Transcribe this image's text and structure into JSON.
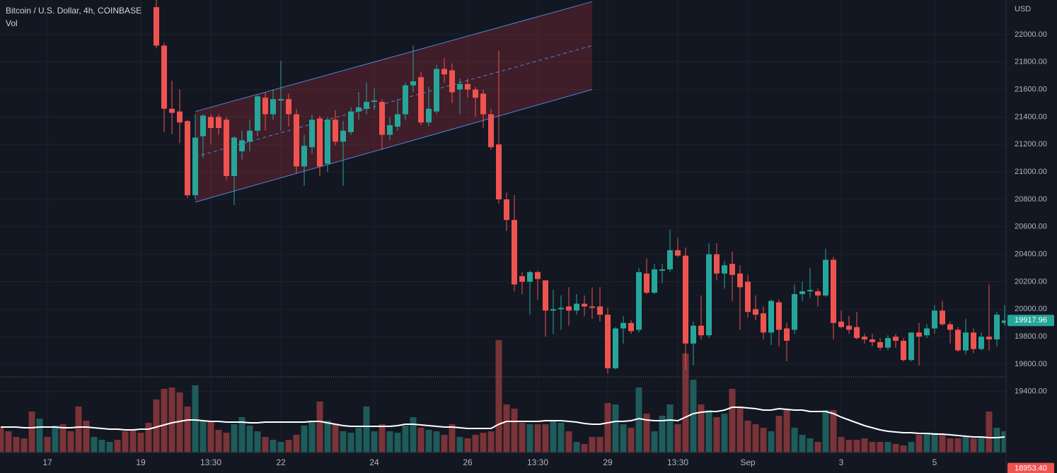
{
  "chart_data": {
    "type": "candlestick",
    "title": "Bitcoin / U.S. Dollar, 4h, COINBASE",
    "indicator": "Vol",
    "currency": "USD",
    "categories": [
      null,
      null,
      null,
      null,
      null,
      null,
      "17",
      null,
      null,
      null,
      null,
      null,
      null,
      null,
      null,
      null,
      null,
      null,
      "19",
      null,
      null,
      null,
      null,
      null,
      null,
      null,
      null,
      "13:30",
      null,
      null,
      null,
      null,
      null,
      null,
      null,
      null,
      "22",
      null,
      null,
      null,
      null,
      null,
      null,
      null,
      null,
      null,
      null,
      null,
      "24",
      null,
      null,
      null,
      null,
      null,
      null,
      null,
      null,
      null,
      null,
      null,
      "26",
      null,
      null,
      null,
      null,
      null,
      null,
      null,
      null,
      "13:30",
      null,
      null,
      null,
      null,
      null,
      null,
      null,
      null,
      "29",
      null,
      null,
      null,
      null,
      null,
      null,
      null,
      null,
      "13:30",
      null,
      null,
      null,
      null,
      null,
      null,
      null,
      null,
      "Sep",
      null,
      null,
      null,
      null,
      null,
      null,
      null,
      null,
      null,
      null,
      null,
      "3",
      null,
      null,
      null,
      null,
      null,
      null,
      null,
      null,
      null,
      null,
      null,
      "5",
      null,
      null,
      null,
      null,
      null,
      null,
      null,
      null,
      null
    ],
    "open": [
      null,
      null,
      null,
      null,
      null,
      null,
      null,
      null,
      null,
      null,
      null,
      null,
      null,
      null,
      null,
      null,
      null,
      null,
      null,
      null,
      22200,
      21920,
      21460,
      21440,
      21370,
      20830,
      21260,
      21400,
      21400,
      21380,
      20970,
      21150,
      21220,
      21300,
      21540,
      21420,
      21520,
      21530,
      21420,
      21040,
      21180,
      21390,
      21060,
      21380,
      21220,
      21290,
      21440,
      21460,
      21510,
      21510,
      21270,
      21330,
      21420,
      21630,
      21690,
      21360,
      21440,
      21750,
      21740,
      21600,
      21640,
      21600,
      21570,
      21420,
      21200,
      20800,
      20650,
      20240,
      20200,
      20270,
      20210,
      19990,
      20000,
      20020,
      19990,
      20040,
      20020,
      20020,
      19960,
      19570,
      19860,
      19900,
      19850,
      20260,
      20120,
      20280,
      20290,
      20430,
      20390,
      19750,
      19880,
      19810,
      20400,
      20260,
      20330,
      20260,
      20200,
      20000,
      19970,
      19830,
      20050,
      19860,
      19850,
      20110,
      20130,
      20130,
      20100,
      20360,
      19910,
      19880,
      19870,
      19800,
      19780,
      19760,
      19720,
      19800,
      19770,
      19630,
      19830,
      19810,
      19860,
      19990,
      19890,
      19850,
      19700,
      19830,
      19710,
      19800,
      19780,
      19900
    ],
    "high": [
      null,
      null,
      null,
      null,
      null,
      null,
      null,
      null,
      null,
      null,
      null,
      null,
      null,
      null,
      null,
      null,
      null,
      null,
      null,
      null,
      22300,
      21940,
      21665,
      21600,
      21380,
      21420,
      21420,
      21420,
      21420,
      21400,
      21260,
      21300,
      21380,
      21560,
      21580,
      21600,
      21810,
      21570,
      21460,
      21270,
      21420,
      21410,
      21400,
      21450,
      21370,
      21470,
      21580,
      21650,
      21610,
      21530,
      21400,
      21530,
      21650,
      21920,
      21730,
      21620,
      21780,
      21830,
      21790,
      21680,
      21680,
      21620,
      21600,
      21460,
      21880,
      20850,
      20830,
      20270,
      20280,
      20280,
      20210,
      20140,
      20100,
      20160,
      20110,
      20100,
      20160,
      20160,
      20010,
      19870,
      19950,
      19920,
      20300,
      20370,
      20330,
      20330,
      20580,
      20520,
      20450,
      19910,
      20100,
      20480,
      20480,
      20350,
      20420,
      20320,
      20250,
      20100,
      20020,
      20070,
      20070,
      19900,
      20180,
      20200,
      20300,
      20150,
      20440,
      20380,
      19990,
      19950,
      19980,
      19820,
      19820,
      19790,
      19810,
      19820,
      19790,
      19830,
      19900,
      19890,
      20030,
      20060,
      19910,
      19870,
      19930,
      19860,
      19830,
      20180,
      19980,
      20030
    ],
    "low": [
      null,
      null,
      null,
      null,
      null,
      null,
      null,
      null,
      null,
      null,
      null,
      null,
      null,
      null,
      null,
      null,
      null,
      null,
      null,
      null,
      21900,
      21290,
      21275,
      21210,
      20810,
      20800,
      21100,
      21200,
      21270,
      20940,
      20760,
      21090,
      21150,
      21260,
      21300,
      21380,
      21300,
      21330,
      20990,
      20900,
      21130,
      20970,
      21000,
      21190,
      20900,
      21270,
      21380,
      21420,
      21450,
      21160,
      21230,
      21300,
      21380,
      21580,
      21340,
      21330,
      21420,
      21650,
      21500,
      21420,
      21540,
      21400,
      21320,
      21160,
      20770,
      20570,
      20130,
      20110,
      19960,
      20070,
      19800,
      19820,
      19850,
      19880,
      19960,
      19950,
      19930,
      19910,
      19530,
      19560,
      19750,
      19820,
      19830,
      20110,
      20110,
      20190,
      20270,
      20380,
      19560,
      19590,
      19780,
      19790,
      20210,
      20150,
      20060,
      19850,
      19940,
      19920,
      19780,
      19740,
      19730,
      19620,
      19820,
      20060,
      20080,
      20020,
      20090,
      19780,
      19860,
      19820,
      19780,
      19750,
      19730,
      19700,
      19700,
      19720,
      19620,
      19620,
      19590,
      19790,
      19820,
      19880,
      19750,
      19690,
      19670,
      19680,
      19700,
      19700,
      19730,
      19880
    ],
    "close": [
      null,
      null,
      null,
      null,
      null,
      null,
      null,
      null,
      null,
      null,
      null,
      null,
      null,
      null,
      null,
      null,
      null,
      null,
      null,
      null,
      21920,
      21460,
      21430,
      21360,
      20830,
      21250,
      21410,
      21320,
      21320,
      20970,
      21250,
      21230,
      21300,
      21550,
      21420,
      21530,
      21530,
      21420,
      21040,
      21190,
      21380,
      21040,
      21380,
      21220,
      21300,
      21440,
      21470,
      21510,
      21520,
      21270,
      21340,
      21420,
      21630,
      21660,
      21360,
      21460,
      21750,
      21710,
      21580,
      21640,
      21600,
      21540,
      21420,
      21180,
      20800,
      20650,
      20180,
      20200,
      20270,
      20220,
      19990,
      20000,
      20010,
      19990,
      20040,
      20020,
      20010,
      19960,
      19570,
      19860,
      19900,
      19840,
      20270,
      20120,
      20290,
      20290,
      20430,
      20390,
      19750,
      19880,
      19810,
      20400,
      20260,
      20320,
      20250,
      20160,
      19980,
      19960,
      19830,
      20060,
      19850,
      19770,
      20110,
      20130,
      20140,
      20100,
      20360,
      19900,
      19870,
      19850,
      19790,
      19780,
      19760,
      19720,
      19790,
      19770,
      19630,
      19830,
      19800,
      19860,
      19990,
      19890,
      19850,
      19700,
      19830,
      19710,
      19800,
      19780,
      19960,
      19917.96
    ],
    "volume": [
      35,
      30,
      22,
      20,
      58,
      48,
      22,
      38,
      40,
      30,
      65,
      45,
      22,
      18,
      15,
      18,
      30,
      32,
      28,
      42,
      75,
      90,
      92,
      85,
      65,
      95,
      45,
      45,
      32,
      28,
      40,
      50,
      38,
      30,
      22,
      18,
      15,
      18,
      25,
      38,
      45,
      72,
      45,
      40,
      30,
      28,
      35,
      65,
      30,
      40,
      30,
      28,
      38,
      50,
      35,
      32,
      30,
      25,
      40,
      22,
      20,
      25,
      28,
      30,
      159,
      68,
      62,
      42,
      40,
      40,
      40,
      45,
      42,
      30,
      15,
      12,
      22,
      22,
      70,
      68,
      40,
      35,
      92,
      55,
      30,
      52,
      68,
      40,
      140,
      103,
      68,
      60,
      50,
      55,
      90,
      65,
      45,
      40,
      35,
      30,
      52,
      60,
      35,
      25,
      20,
      15,
      60,
      60,
      22,
      18,
      18,
      20,
      15,
      15,
      15,
      12,
      10,
      15,
      25,
      28,
      28,
      25,
      20,
      20,
      22,
      20,
      22,
      58,
      35,
      30
    ],
    "volume_rising": [
      false,
      false,
      false,
      false,
      false,
      true,
      false,
      true,
      false,
      false,
      false,
      false,
      true,
      true,
      true,
      false,
      false,
      false,
      false,
      false,
      false,
      false,
      false,
      false,
      false,
      true,
      true,
      false,
      false,
      false,
      true,
      true,
      true,
      true,
      false,
      true,
      true,
      false,
      false,
      true,
      true,
      false,
      true,
      false,
      true,
      true,
      true,
      true,
      true,
      false,
      true,
      true,
      true,
      true,
      false,
      true,
      true,
      false,
      false,
      true,
      false,
      false,
      false,
      false,
      false,
      false,
      false,
      false,
      true,
      false,
      false,
      true,
      true,
      false,
      true,
      false,
      false,
      false,
      false,
      true,
      true,
      false,
      true,
      false,
      true,
      true,
      true,
      false,
      false,
      true,
      false,
      true,
      false,
      true,
      false,
      false,
      false,
      false,
      false,
      true,
      false,
      false,
      true,
      true,
      true,
      false,
      true,
      false,
      false,
      false,
      false,
      false,
      false,
      false,
      true,
      false,
      false,
      true,
      false,
      true,
      true,
      false,
      false,
      false,
      true,
      false,
      true,
      false,
      true,
      true
    ],
    "volume_ma": [
      36,
      36,
      36,
      35,
      35,
      36,
      36,
      36,
      35,
      35,
      36,
      36,
      35,
      34,
      33,
      33,
      32,
      32,
      33,
      33,
      36,
      39,
      42,
      44,
      46,
      46,
      45,
      44,
      44,
      43,
      43,
      43,
      42,
      42,
      43,
      43,
      43,
      43,
      43,
      43,
      44,
      44,
      42,
      40,
      38,
      37,
      37,
      37,
      37,
      37,
      37,
      38,
      40,
      40,
      39,
      38,
      37,
      36,
      36,
      35,
      34,
      34,
      34,
      34,
      40,
      44,
      44,
      44,
      44,
      44,
      45,
      45,
      45,
      44,
      43,
      41,
      40,
      40,
      42,
      44,
      44,
      45,
      48,
      46,
      45,
      45,
      46,
      45,
      50,
      55,
      57,
      58,
      58,
      60,
      64,
      64,
      63,
      62,
      60,
      60,
      62,
      61,
      60,
      60,
      58,
      58,
      58,
      55,
      50,
      46,
      42,
      38,
      35,
      32,
      30,
      29,
      28,
      28,
      27,
      27,
      26,
      26,
      25,
      24,
      23,
      22,
      22,
      21,
      21,
      22
    ],
    "volume_max": 160,
    "ylim": [
      18807,
      22252
    ],
    "yticks": [
      {
        "value": 19400,
        "label": "19400.00"
      },
      {
        "value": 19600,
        "label": "19600.00"
      },
      {
        "value": 19800,
        "label": "19800.00"
      },
      {
        "value": 20000,
        "label": "20000.00"
      },
      {
        "value": 20200,
        "label": "20200.00"
      },
      {
        "value": 20400,
        "label": "20400.00"
      },
      {
        "value": 20600,
        "label": "20600.00"
      },
      {
        "value": 20800,
        "label": "20800.00"
      },
      {
        "value": 21000,
        "label": "21000.00"
      },
      {
        "value": 21200,
        "label": "21200.00"
      },
      {
        "value": 21400,
        "label": "21400.00"
      },
      {
        "value": 21600,
        "label": "21600.00"
      },
      {
        "value": 21800,
        "label": "21800.00"
      },
      {
        "value": 22000,
        "label": "22000.00"
      }
    ],
    "bottom_price": {
      "value": 18953.4,
      "label": "18953.40"
    },
    "channel": {
      "start": 25,
      "end": 76,
      "upper": [
        21440,
        22240
      ],
      "lower": [
        20780,
        21600
      ]
    },
    "grid": true,
    "up_color": "#26a69a",
    "down_color": "#ef5350",
    "volume_up_color": "#1e5b5a",
    "volume_down_color": "#7a3338",
    "ma_color": "#ffffff",
    "channel_color": "#4f86d6",
    "channel_fill": "rgba(242,54,69,0.2)"
  }
}
